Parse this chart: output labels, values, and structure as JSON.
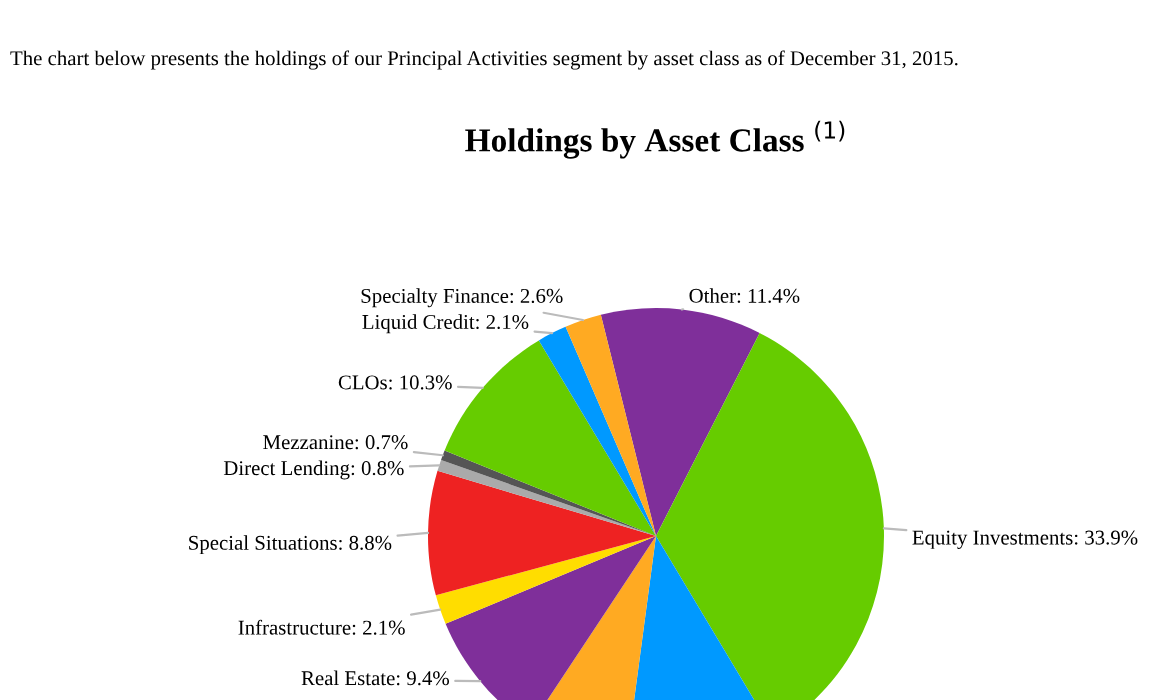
{
  "chart_data": {
    "type": "pie",
    "title": "Holdings by Asset Class $^{(1)}$",
    "annotations": [
      "The chart below presents the holdings of our Principal Activities segment by asset class as of December 31, 2015."
    ],
    "categories": [
      "Other",
      "Equity Investments",
      null,
      null,
      "Real Estate",
      "Infrastructure",
      "Special Situations",
      "Direct Lending",
      "Mezzanine",
      "CLOs",
      "Liquid Credit",
      "Specialty Finance"
    ],
    "values": [
      11.4,
      33.9,
      10.7,
      7.2,
      9.4,
      2.1,
      8.8,
      0.8,
      0.7,
      10.3,
      2.1,
      2.6
    ],
    "value_labels": [
      "11.4%",
      "33.9%",
      null,
      null,
      "9.4%",
      "2.1%",
      "8.8%",
      "0.8%",
      "0.7%",
      "10.3%",
      "2.1%",
      "2.6%"
    ],
    "colors": [
      "#7f2f9a",
      "#66cc00",
      "#0099ff",
      "#ffaa22",
      "#7f2f9a",
      "#ffdd00",
      "#ee2222",
      "#aaaaaa",
      "#555555",
      "#66cc00",
      "#0099ff",
      "#ffaa22"
    ],
    "legend": false
  }
}
